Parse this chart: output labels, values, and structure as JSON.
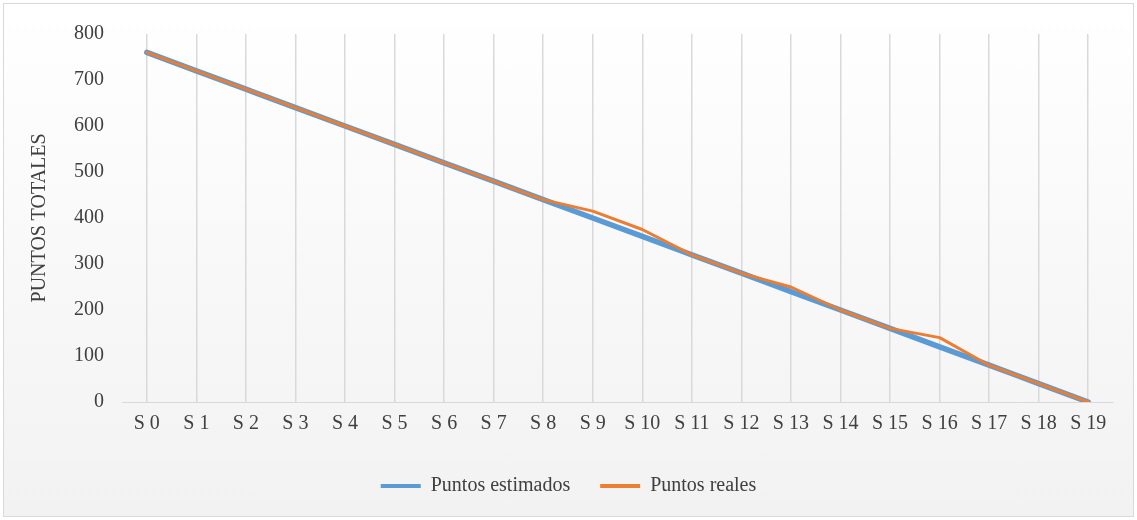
{
  "chart_data": {
    "type": "line",
    "ylabel": "PUNTOS TOTALES",
    "categories": [
      "S 0",
      "S 1",
      "S 2",
      "S 3",
      "S 4",
      "S 5",
      "S 6",
      "S 7",
      "S 8",
      "S 9",
      "S 10",
      "S 11",
      "S 12",
      "S 13",
      "S 14",
      "S 15",
      "S 16",
      "S 17",
      "S 18",
      "S 19"
    ],
    "series": [
      {
        "name": "Puntos estimados",
        "color": "#5b9bd5",
        "values": [
          760,
          720,
          680,
          640,
          600,
          560,
          520,
          480,
          440,
          400,
          360,
          320,
          280,
          240,
          200,
          160,
          120,
          80,
          40,
          0
        ]
      },
      {
        "name": "Puntos reales",
        "color": "#ed7d31",
        "values": [
          760,
          720,
          680,
          640,
          600,
          560,
          520,
          480,
          440,
          415,
          375,
          320,
          280,
          250,
          200,
          160,
          140,
          80,
          40,
          0
        ]
      }
    ],
    "ylim": [
      0,
      800
    ],
    "yticks": [
      0,
      100,
      200,
      300,
      400,
      500,
      600,
      700,
      800
    ],
    "grid": "x",
    "legend": "bottom",
    "marker": "none",
    "line_style": "solid"
  }
}
